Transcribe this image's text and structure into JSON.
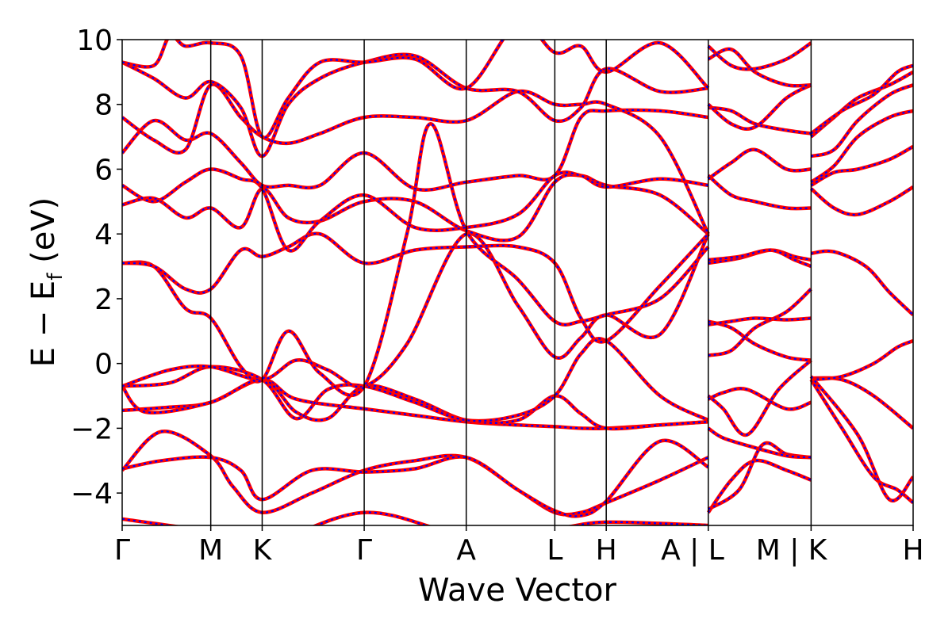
{
  "chart_data": {
    "type": "line",
    "title": "",
    "xlabel": "Wave Vector",
    "ylabel_main": "E − E",
    "ylabel_sub": "f",
    "ylabel_unit": " (eV)",
    "ylim": [
      -5,
      10
    ],
    "xlim": [
      0,
      1
    ],
    "yticks": [
      10,
      8,
      6,
      4,
      2,
      0,
      -2,
      -4
    ],
    "ytick_labels": [
      "10",
      "8",
      "6",
      "4",
      "2",
      "0",
      "−2",
      "−4"
    ],
    "kpoints": [
      {
        "label": "Γ",
        "x": 0.0
      },
      {
        "label": "M",
        "x": 0.112
      },
      {
        "label": "K",
        "x": 0.177
      },
      {
        "label": "Γ",
        "x": 0.306
      },
      {
        "label": "A",
        "x": 0.435
      },
      {
        "label": "L",
        "x": 0.547
      },
      {
        "label": "H",
        "x": 0.612
      },
      {
        "label": "A | L",
        "x": 0.741
      },
      {
        "label": "M | K",
        "x": 0.871
      },
      {
        "label": "H",
        "x": 1.0
      }
    ],
    "style": {
      "line_color": "#ff0000",
      "dash_color": "#0000ff"
    },
    "series": [
      {
        "x": [
          0,
          0.112,
          0.177,
          0.306,
          0.435,
          0.547,
          0.612,
          0.741
        ],
        "y": [
          -4.8,
          -5.2,
          -5.6,
          -4.6,
          -5.3,
          -5.1,
          -4.9,
          -5.0
        ]
      },
      {
        "x": [
          0,
          0.05,
          0.112,
          0.14,
          0.177,
          0.24,
          0.306,
          0.37,
          0.435,
          0.5,
          0.547,
          0.58,
          0.612,
          0.68,
          0.741
        ],
        "y": [
          -3.3,
          -2.1,
          -2.85,
          -3.8,
          -4.6,
          -4.0,
          -3.3,
          -3.0,
          -2.9,
          -3.9,
          -4.6,
          -4.6,
          -4.3,
          -3.6,
          -2.9
        ]
      },
      {
        "x": [
          0,
          0.05,
          0.112,
          0.15,
          0.177,
          0.24,
          0.306,
          0.37,
          0.435,
          0.5,
          0.547,
          0.58,
          0.612,
          0.68,
          0.741
        ],
        "y": [
          -3.25,
          -3.0,
          -2.9,
          -3.3,
          -4.2,
          -3.3,
          -3.35,
          -3.25,
          -2.9,
          -3.9,
          -4.55,
          -4.7,
          -4.25,
          -2.4,
          -3.2
        ]
      },
      {
        "x": [
          0,
          0.06,
          0.112,
          0.177,
          0.22,
          0.306,
          0.37,
          0.435,
          0.5,
          0.547,
          0.58,
          0.612,
          0.68,
          0.741
        ],
        "y": [
          -1.45,
          -1.35,
          -1.2,
          -0.5,
          -1.1,
          -1.4,
          -1.6,
          -1.8,
          -1.9,
          -1.95,
          -2.0,
          -2.0,
          -1.9,
          -1.8
        ]
      },
      {
        "x": [
          0,
          0.03,
          0.112,
          0.177,
          0.22,
          0.26,
          0.306,
          0.37,
          0.435,
          0.5,
          0.547,
          0.58,
          0.612,
          0.68,
          0.741
        ],
        "y": [
          -0.7,
          -1.5,
          -1.2,
          -0.5,
          -1.5,
          -1.7,
          -0.7,
          -1.1,
          -1.75,
          -1.75,
          -1.0,
          -1.55,
          -2.0,
          -1.9,
          -1.8
        ]
      },
      {
        "x": [
          0,
          0.06,
          0.112,
          0.177,
          0.22,
          0.26,
          0.306,
          0.37,
          0.435,
          0.5,
          0.547,
          0.58,
          0.612,
          0.68,
          0.741
        ],
        "y": [
          -0.7,
          -0.6,
          -0.1,
          -0.5,
          -1.7,
          -0.8,
          -0.7,
          -1.2,
          -1.75,
          -1.6,
          -1.0,
          0.3,
          0.7,
          -1.0,
          -1.75
        ]
      },
      {
        "x": [
          0,
          0.06,
          0.112,
          0.177,
          0.22,
          0.26,
          0.306,
          0.36,
          0.435,
          0.5,
          0.547,
          0.58,
          0.612,
          0.68,
          0.741
        ],
        "y": [
          -0.7,
          -0.2,
          -0.1,
          -0.5,
          0.1,
          -0.2,
          -0.7,
          0.6,
          4.0,
          1.8,
          0.2,
          0.8,
          1.5,
          0.9,
          4.0
        ]
      },
      {
        "x": [
          0,
          0.04,
          0.08,
          0.112,
          0.15,
          0.177,
          0.21,
          0.25,
          0.306,
          0.36,
          0.39,
          0.435,
          0.5,
          0.547,
          0.58,
          0.612,
          0.68,
          0.741
        ],
        "y": [
          3.1,
          3.0,
          1.7,
          1.4,
          -0.1,
          -0.5,
          1.0,
          -0.3,
          -0.7,
          4.0,
          7.4,
          4.1,
          2.6,
          1.3,
          1.3,
          1.5,
          2.0,
          3.6
        ]
      },
      {
        "x": [
          0,
          0.04,
          0.08,
          0.112,
          0.15,
          0.177,
          0.21,
          0.25,
          0.306,
          0.37,
          0.435,
          0.5,
          0.547,
          0.58,
          0.612,
          0.68,
          0.741
        ],
        "y": [
          3.1,
          3.0,
          2.3,
          2.3,
          3.5,
          3.3,
          3.6,
          4.0,
          3.1,
          3.5,
          3.6,
          3.6,
          3.1,
          1.4,
          0.7,
          2.4,
          4.0
        ]
      },
      {
        "x": [
          0,
          0.04,
          0.08,
          0.112,
          0.15,
          0.177,
          0.21,
          0.25,
          0.306,
          0.37,
          0.435,
          0.5,
          0.547,
          0.58,
          0.612,
          0.68,
          0.741
        ],
        "y": [
          4.9,
          5.1,
          4.5,
          4.8,
          4.2,
          5.4,
          4.5,
          4.4,
          5.0,
          5.0,
          4.1,
          3.9,
          5.6,
          5.8,
          5.5,
          5.2,
          4.0
        ]
      },
      {
        "x": [
          0,
          0.04,
          0.08,
          0.112,
          0.15,
          0.177,
          0.21,
          0.25,
          0.306,
          0.37,
          0.435,
          0.5,
          0.547,
          0.58,
          0.612,
          0.68,
          0.741
        ],
        "y": [
          5.5,
          5.0,
          5.6,
          6.0,
          5.7,
          5.4,
          3.5,
          4.4,
          5.2,
          4.2,
          4.2,
          4.6,
          5.8,
          5.8,
          5.45,
          5.7,
          5.5
        ]
      },
      {
        "x": [
          0,
          0.04,
          0.08,
          0.112,
          0.15,
          0.177,
          0.21,
          0.25,
          0.306,
          0.37,
          0.435,
          0.5,
          0.547,
          0.58,
          0.612,
          0.68,
          0.741
        ],
        "y": [
          6.5,
          7.5,
          6.9,
          7.1,
          6.2,
          5.5,
          5.5,
          5.5,
          6.5,
          5.4,
          5.6,
          5.8,
          5.8,
          7.6,
          7.8,
          7.8,
          7.6
        ]
      },
      {
        "x": [
          0,
          0.04,
          0.08,
          0.112,
          0.15,
          0.177,
          0.21,
          0.25,
          0.306,
          0.37,
          0.435,
          0.5,
          0.547,
          0.58,
          0.612,
          0.68,
          0.741
        ],
        "y": [
          7.6,
          6.9,
          6.6,
          8.6,
          7.6,
          7.0,
          6.8,
          7.1,
          7.6,
          7.6,
          7.5,
          8.4,
          8.0,
          8.0,
          8.0,
          7.0,
          4.0
        ]
      },
      {
        "x": [
          0,
          0.04,
          0.08,
          0.112,
          0.15,
          0.177,
          0.21,
          0.25,
          0.306,
          0.37,
          0.435,
          0.5,
          0.547,
          0.58,
          0.612,
          0.68,
          0.741
        ],
        "y": [
          9.3,
          8.8,
          8.2,
          8.7,
          7.9,
          6.4,
          8.0,
          8.8,
          9.3,
          9.5,
          8.5,
          8.4,
          7.5,
          7.9,
          9.1,
          8.4,
          8.5
        ]
      },
      {
        "x": [
          0,
          0.04,
          0.06,
          0.08,
          0.112,
          0.15,
          0.177,
          0.21,
          0.25,
          0.306,
          0.37,
          0.435,
          0.5,
          0.547,
          0.58,
          0.612,
          0.68,
          0.741
        ],
        "y": [
          9.3,
          9.2,
          10.1,
          9.8,
          9.9,
          9.5,
          7.0,
          8.2,
          9.3,
          9.3,
          9.4,
          8.5,
          10.5,
          9.6,
          9.8,
          9.0,
          9.9,
          8.5
        ]
      },
      {
        "x": [
          0.741,
          0.77,
          0.8,
          0.84,
          0.871
        ],
        "y": [
          -4.6,
          -3.6,
          -3.0,
          -3.3,
          -3.6
        ]
      },
      {
        "x": [
          0.741,
          0.78,
          0.81,
          0.84,
          0.871
        ],
        "y": [
          -4.5,
          -3.9,
          -2.5,
          -2.8,
          -2.9
        ]
      },
      {
        "x": [
          0.741,
          0.76,
          0.8,
          0.84,
          0.871
        ],
        "y": [
          -2.0,
          -2.3,
          -2.6,
          -2.85,
          -2.9
        ]
      },
      {
        "x": [
          0.741,
          0.76,
          0.79,
          0.83,
          0.871
        ],
        "y": [
          -1.0,
          -1.4,
          -2.2,
          -0.8,
          0.1
        ]
      },
      {
        "x": [
          0.741,
          0.76,
          0.79,
          0.84,
          0.871
        ],
        "y": [
          -1.1,
          -0.9,
          -0.8,
          -1.4,
          -1.2
        ]
      },
      {
        "x": [
          0.741,
          0.77,
          0.8,
          0.84,
          0.871
        ],
        "y": [
          0.25,
          0.4,
          1.1,
          1.6,
          2.3
        ]
      },
      {
        "x": [
          0.741,
          0.77,
          0.8,
          0.84,
          0.871
        ],
        "y": [
          1.3,
          1.1,
          0.6,
          0.2,
          0.1
        ]
      },
      {
        "x": [
          0.741,
          0.77,
          0.8,
          0.84,
          0.871
        ],
        "y": [
          1.2,
          1.3,
          1.4,
          1.35,
          1.4
        ]
      },
      {
        "x": [
          0.741,
          0.78,
          0.82,
          0.85,
          0.871
        ],
        "y": [
          3.1,
          3.25,
          3.5,
          3.3,
          3.2
        ]
      },
      {
        "x": [
          0.741,
          0.78,
          0.82,
          0.85,
          0.871
        ],
        "y": [
          3.2,
          3.3,
          3.5,
          3.2,
          3.0
        ]
      },
      {
        "x": [
          0.741,
          0.77,
          0.8,
          0.84,
          0.871
        ],
        "y": [
          5.8,
          5.2,
          5.0,
          4.8,
          4.8
        ]
      },
      {
        "x": [
          0.741,
          0.77,
          0.8,
          0.84,
          0.871
        ],
        "y": [
          5.7,
          6.2,
          6.6,
          6.0,
          6.0
        ]
      },
      {
        "x": [
          0.741,
          0.77,
          0.8,
          0.84,
          0.871
        ],
        "y": [
          7.9,
          7.8,
          7.4,
          7.2,
          7.1
        ]
      },
      {
        "x": [
          0.741,
          0.77,
          0.8,
          0.84,
          0.871
        ],
        "y": [
          8.0,
          7.4,
          7.3,
          8.2,
          8.6
        ]
      },
      {
        "x": [
          0.741,
          0.77,
          0.8,
          0.84,
          0.871
        ],
        "y": [
          9.4,
          9.7,
          9.0,
          8.6,
          8.6
        ]
      },
      {
        "x": [
          0.741,
          0.77,
          0.8,
          0.84,
          0.871
        ],
        "y": [
          9.8,
          9.2,
          9.1,
          9.4,
          9.9
        ]
      },
      {
        "x": [
          0.871,
          0.91,
          0.95,
          1.0
        ],
        "y": [
          -0.45,
          -0.5,
          -1.0,
          -2.0
        ]
      },
      {
        "x": [
          0.871,
          0.91,
          0.95,
          0.98,
          1.0
        ],
        "y": [
          -0.5,
          -2.0,
          -3.5,
          -3.9,
          -4.3
        ]
      },
      {
        "x": [
          0.871,
          0.91,
          0.95,
          0.98,
          1.0
        ],
        "y": [
          -0.5,
          -0.4,
          0.0,
          0.5,
          0.7
        ]
      },
      {
        "x": [
          0.871,
          0.93,
          0.97,
          1.0
        ],
        "y": [
          -0.4,
          -2.2,
          -4.2,
          -3.5
        ]
      },
      {
        "x": [
          0.871,
          0.9,
          0.94,
          0.97,
          1.0
        ],
        "y": [
          3.4,
          3.45,
          3.0,
          2.2,
          1.5
        ]
      },
      {
        "x": [
          0.871,
          0.9,
          0.93,
          0.97,
          1.0
        ],
        "y": [
          5.4,
          4.8,
          4.6,
          5.0,
          5.45
        ]
      },
      {
        "x": [
          0.871,
          0.9,
          0.93,
          0.97,
          1.0
        ],
        "y": [
          5.5,
          5.9,
          6.0,
          6.3,
          6.7
        ]
      },
      {
        "x": [
          0.871,
          0.9,
          0.93,
          0.97,
          1.0
        ],
        "y": [
          5.6,
          6.1,
          7.0,
          7.6,
          7.8
        ]
      },
      {
        "x": [
          0.871,
          0.9,
          0.93,
          0.97,
          1.0
        ],
        "y": [
          6.4,
          6.6,
          7.5,
          8.3,
          8.6
        ]
      },
      {
        "x": [
          0.871,
          0.9,
          0.93,
          0.97,
          1.0
        ],
        "y": [
          7.0,
          7.6,
          8.2,
          8.6,
          9.0
        ]
      },
      {
        "x": [
          0.871,
          0.91,
          0.95,
          0.98,
          1.0
        ],
        "y": [
          7.1,
          7.8,
          8.3,
          9.0,
          9.2
        ]
      }
    ]
  }
}
